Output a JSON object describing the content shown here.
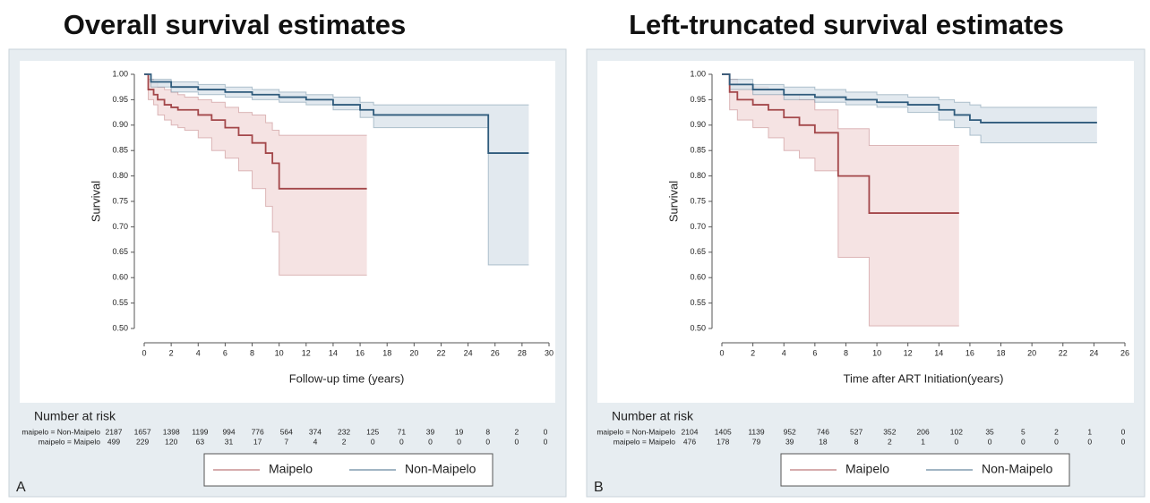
{
  "chart_data": [
    {
      "type": "line",
      "step": true,
      "title": "Overall survival estimates",
      "panel_label": "A",
      "x_label": "Follow-up time (years)",
      "y_label": "Survival",
      "xlim": [
        0,
        30
      ],
      "xticks": [
        0,
        2,
        4,
        6,
        8,
        10,
        12,
        14,
        16,
        18,
        20,
        22,
        24,
        26,
        28,
        30
      ],
      "ylim": [
        0.5,
        1
      ],
      "yticks": [
        {
          "value": 0.5,
          "label": "0.50"
        },
        0.55,
        {
          "value": 0.6,
          "label": "0.60"
        },
        0.65,
        {
          "value": 0.7,
          "label": "0.70"
        },
        0.75,
        {
          "value": 0.8,
          "label": "0.80"
        },
        0.85,
        {
          "value": 0.9,
          "label": "0.90"
        },
        0.95,
        {
          "value": 1,
          "label": "1.00"
        }
      ],
      "series": [
        {
          "name": "Maipelo",
          "color": "#a3474a",
          "ci_color": "#f3dcdc",
          "x": [
            0,
            0.3,
            0.7,
            1,
            1.5,
            2,
            2.5,
            3,
            4,
            5,
            6,
            7,
            8,
            9,
            9.5,
            10,
            16.5
          ],
          "values": [
            1,
            0.97,
            0.96,
            0.95,
            0.94,
            0.935,
            0.93,
            0.93,
            0.92,
            0.91,
            0.895,
            0.88,
            0.865,
            0.845,
            0.825,
            0.775,
            0.775
          ],
          "lower": [
            1,
            0.95,
            0.94,
            0.92,
            0.91,
            0.9,
            0.895,
            0.89,
            0.875,
            0.85,
            0.835,
            0.81,
            0.775,
            0.74,
            0.69,
            0.605,
            0.605
          ],
          "upper": [
            1,
            0.99,
            0.985,
            0.975,
            0.97,
            0.965,
            0.96,
            0.955,
            0.95,
            0.945,
            0.935,
            0.925,
            0.92,
            0.905,
            0.89,
            0.88,
            0.88
          ]
        },
        {
          "name": "Non-Maipelo",
          "color": "#2f5b7c",
          "ci_color": "#dbe3eb",
          "x": [
            0,
            0.5,
            2,
            4,
            6,
            8,
            10,
            12,
            14,
            16,
            17,
            25.5,
            28.5
          ],
          "values": [
            1,
            0.985,
            0.975,
            0.97,
            0.965,
            0.96,
            0.955,
            0.95,
            0.94,
            0.93,
            0.92,
            0.845,
            0.845
          ],
          "lower": [
            1,
            0.975,
            0.965,
            0.96,
            0.955,
            0.95,
            0.945,
            0.94,
            0.93,
            0.915,
            0.895,
            0.625,
            0.625
          ],
          "upper": [
            1,
            0.99,
            0.985,
            0.98,
            0.975,
            0.97,
            0.965,
            0.96,
            0.955,
            0.945,
            0.94,
            0.94,
            0.94
          ]
        }
      ],
      "risk_table": {
        "title": "Number at risk",
        "rows": [
          {
            "label": "maipelo = Non-Maipelo",
            "values": [
              2187,
              1657,
              1398,
              1199,
              994,
              776,
              564,
              374,
              232,
              125,
              71,
              39,
              19,
              8,
              2,
              0
            ]
          },
          {
            "label": "maipelo = Maipelo",
            "values": [
              499,
              229,
              120,
              63,
              31,
              17,
              7,
              4,
              2,
              0,
              0,
              0,
              0,
              0,
              0,
              0
            ]
          }
        ]
      }
    },
    {
      "type": "line",
      "step": true,
      "title": "Left-truncated survival estimates",
      "panel_label": "B",
      "x_label": "Time after ART Initiation(years)",
      "y_label": "Survival",
      "xlim": [
        0,
        26
      ],
      "xticks": [
        0,
        2,
        4,
        6,
        8,
        10,
        12,
        14,
        16,
        18,
        20,
        22,
        24,
        26
      ],
      "ylim": [
        0.5,
        1
      ],
      "yticks": [
        {
          "value": 0.5,
          "label": "0.50"
        },
        0.55,
        {
          "value": 0.6,
          "label": "0.60"
        },
        0.65,
        {
          "value": 0.7,
          "label": "0.70"
        },
        0.75,
        {
          "value": 0.8,
          "label": "0.80"
        },
        0.85,
        {
          "value": 0.9,
          "label": "0.90"
        },
        0.95,
        {
          "value": 1,
          "label": "1.00"
        }
      ],
      "series": [
        {
          "name": "Maipelo",
          "color": "#a3474a",
          "ci_color": "#f3dcdc",
          "x": [
            0,
            0.5,
            1,
            2,
            3,
            4,
            5,
            6,
            7.5,
            9.5,
            15.3
          ],
          "values": [
            1,
            0.965,
            0.95,
            0.94,
            0.93,
            0.915,
            0.9,
            0.885,
            0.8,
            0.727,
            0.727
          ],
          "lower": [
            1,
            0.93,
            0.91,
            0.895,
            0.875,
            0.85,
            0.835,
            0.81,
            0.64,
            0.505,
            0.505
          ],
          "upper": [
            1,
            0.99,
            0.98,
            0.975,
            0.97,
            0.96,
            0.95,
            0.93,
            0.893,
            0.86,
            0.86
          ]
        },
        {
          "name": "Non-Maipelo",
          "color": "#2f5b7c",
          "ci_color": "#dbe3eb",
          "x": [
            0,
            0.5,
            2,
            4,
            6,
            8,
            10,
            12,
            14,
            15,
            16,
            16.7,
            24.2
          ],
          "values": [
            1,
            0.98,
            0.97,
            0.96,
            0.955,
            0.95,
            0.945,
            0.94,
            0.93,
            0.92,
            0.91,
            0.905,
            0.905
          ],
          "lower": [
            1,
            0.97,
            0.96,
            0.95,
            0.945,
            0.94,
            0.935,
            0.925,
            0.91,
            0.895,
            0.88,
            0.865,
            0.865
          ],
          "upper": [
            1,
            0.99,
            0.98,
            0.975,
            0.97,
            0.965,
            0.96,
            0.955,
            0.95,
            0.945,
            0.94,
            0.935,
            0.935
          ]
        }
      ],
      "risk_table": {
        "title": "Number at risk",
        "rows": [
          {
            "label": "maipelo = Non-Maipelo",
            "values": [
              2104,
              1405,
              1139,
              952,
              746,
              527,
              352,
              206,
              102,
              35,
              5,
              2,
              1,
              0
            ]
          },
          {
            "label": "maipelo = Maipelo",
            "values": [
              476,
              178,
              79,
              39,
              18,
              8,
              2,
              1,
              0,
              0,
              0,
              0,
              0,
              0
            ]
          }
        ]
      }
    }
  ]
}
